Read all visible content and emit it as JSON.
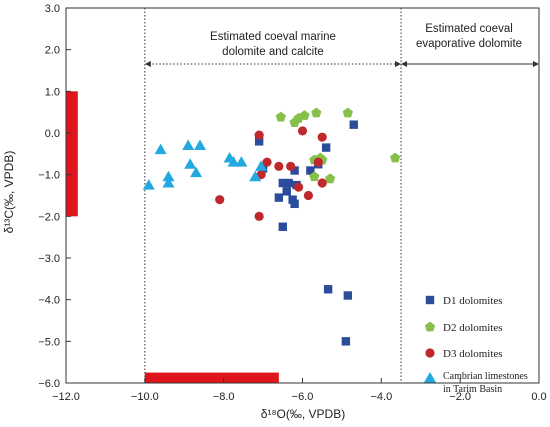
{
  "chart_data": {
    "type": "scatter",
    "title": "",
    "xlabel": "δ¹⁸O(‰, VPDB)",
    "ylabel": "δ¹³C(‰, VPDB)",
    "xlim": [
      -12.0,
      0.0
    ],
    "ylim": [
      -6.0,
      3.0
    ],
    "xticks": [
      -12.0,
      -10.0,
      -8.0,
      -6.0,
      -4.0,
      -2.0,
      0.0
    ],
    "xtick_labels": [
      "−12.0",
      "−10.0",
      "−8.0",
      "−6.0",
      "−4.0",
      "−2.0",
      "0.0"
    ],
    "yticks": [
      3.0,
      2.0,
      1.0,
      0.0,
      -1.0,
      -2.0,
      -3.0,
      -4.0,
      -5.0,
      -6.0
    ],
    "ytick_labels": [
      "3.0",
      "2.0",
      "1.0",
      "0.0",
      "−1.0",
      "−2.0",
      "−3.0",
      "−4.0",
      "−5.0",
      "−6.0"
    ],
    "grid": false,
    "legend_position": "bottom-right",
    "colors": {
      "D1": "#2b4b9b",
      "D2": "#86bf4a",
      "D3": "#c0282d",
      "Cambrian": "#23a8e0",
      "field": "#e0141b"
    },
    "annotations": {
      "marine_line1": "Estimated coeval marine",
      "marine_line2": "dolomite and calcite",
      "evap_line1": "Estimated coeval",
      "evap_line2": "evaporative dolomite",
      "marine_range_x": [
        -10.0,
        -3.5
      ],
      "evap_range_x": [
        -3.5,
        0.0
      ]
    },
    "bars": [
      {
        "name": "carbon-field",
        "x": [
          -12.0,
          -11.7
        ],
        "y": [
          -2.0,
          1.0
        ]
      },
      {
        "name": "oxygen-field",
        "x": [
          -10.0,
          -6.6
        ],
        "y": [
          -6.0,
          -5.75
        ]
      }
    ],
    "series": [
      {
        "name": "D1 dolomites",
        "marker": "square",
        "color": "#2b4b9b",
        "points": [
          [
            -7.1,
            -0.2
          ],
          [
            -7.0,
            -0.85
          ],
          [
            -6.5,
            -1.2
          ],
          [
            -6.35,
            -1.2
          ],
          [
            -6.2,
            -0.9
          ],
          [
            -6.15,
            -1.25
          ],
          [
            -6.4,
            -1.4
          ],
          [
            -6.6,
            -1.55
          ],
          [
            -6.25,
            -1.6
          ],
          [
            -6.2,
            -1.7
          ],
          [
            -6.5,
            -2.25
          ],
          [
            -5.8,
            -0.9
          ],
          [
            -5.6,
            -0.75
          ],
          [
            -5.4,
            -0.35
          ],
          [
            -4.7,
            0.2
          ],
          [
            -5.35,
            -3.75
          ],
          [
            -4.85,
            -3.9
          ],
          [
            -4.9,
            -5.0
          ]
        ]
      },
      {
        "name": "D2 dolomites",
        "marker": "pentagon",
        "color": "#86bf4a",
        "points": [
          [
            -6.55,
            0.38
          ],
          [
            -6.2,
            0.25
          ],
          [
            -6.1,
            0.35
          ],
          [
            -5.95,
            0.42
          ],
          [
            -5.65,
            0.48
          ],
          [
            -4.85,
            0.48
          ],
          [
            -5.7,
            -0.65
          ],
          [
            -5.5,
            -0.65
          ],
          [
            -5.55,
            -0.6
          ],
          [
            -5.3,
            -1.1
          ],
          [
            -5.7,
            -1.05
          ],
          [
            -3.65,
            -0.6
          ]
        ]
      },
      {
        "name": "D3 dolomites",
        "marker": "circle",
        "color": "#c0282d",
        "points": [
          [
            -7.1,
            -0.05
          ],
          [
            -6.9,
            -0.7
          ],
          [
            -7.05,
            -1.0
          ],
          [
            -6.6,
            -0.8
          ],
          [
            -6.3,
            -0.8
          ],
          [
            -6.1,
            -1.3
          ],
          [
            -5.85,
            -1.5
          ],
          [
            -6.0,
            0.05
          ],
          [
            -5.5,
            -0.1
          ],
          [
            -5.6,
            -0.7
          ],
          [
            -5.5,
            -1.2
          ],
          [
            -8.1,
            -1.6
          ],
          [
            -7.1,
            -2.0
          ]
        ]
      },
      {
        "name": "Cambrian limestones in Tarim Basin",
        "marker": "triangle",
        "color": "#23a8e0",
        "points": [
          [
            -9.9,
            -1.25
          ],
          [
            -9.6,
            -0.4
          ],
          [
            -9.4,
            -1.05
          ],
          [
            -9.4,
            -1.2
          ],
          [
            -8.9,
            -0.3
          ],
          [
            -8.85,
            -0.75
          ],
          [
            -8.7,
            -0.95
          ],
          [
            -8.6,
            -0.3
          ],
          [
            -7.85,
            -0.6
          ],
          [
            -7.75,
            -0.7
          ],
          [
            -7.55,
            -0.7
          ],
          [
            -7.2,
            -1.05
          ],
          [
            -7.05,
            -0.8
          ]
        ]
      }
    ],
    "legend": {
      "d1": "D1 dolomites",
      "d2": "D2 dolomites",
      "d3": "D3 dolomites",
      "cambrian_line1": "Cambrian limestones",
      "cambrian_line2": "in Tarim Basin"
    }
  }
}
